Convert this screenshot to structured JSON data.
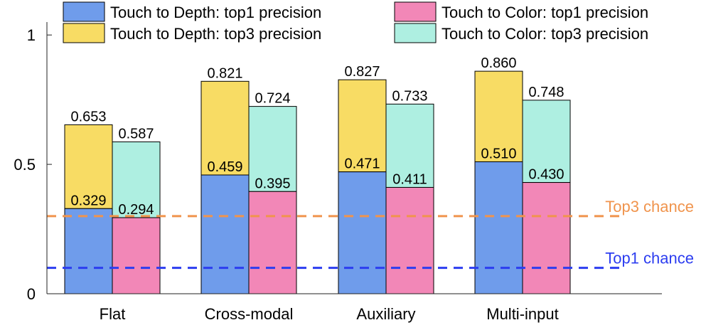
{
  "chart_data": {
    "type": "bar",
    "title": "",
    "xlabel": "",
    "ylabel": "",
    "ylim": [
      0,
      1.05
    ],
    "yticks": [
      0,
      0.5,
      1
    ],
    "ytick_labels": [
      "0",
      "0.5",
      "1"
    ],
    "categories": [
      "Flat",
      "Cross-modal",
      "Auxiliary",
      "Multi-input"
    ],
    "series": [
      {
        "name": "Touch to Depth: top1 precision",
        "values": [
          0.329,
          0.459,
          0.471,
          0.51
        ],
        "labels": [
          "0.329",
          "0.459",
          "0.471",
          "0.510"
        ],
        "color": "#6f9ceb"
      },
      {
        "name": "Touch to Depth: top3 precision",
        "values": [
          0.653,
          0.821,
          0.827,
          0.86
        ],
        "labels": [
          "0.653",
          "0.821",
          "0.827",
          "0.860"
        ],
        "color": "#f8dc64"
      },
      {
        "name": "Touch to Color: top1 precision",
        "values": [
          0.294,
          0.395,
          0.411,
          0.43
        ],
        "labels": [
          "0.294",
          "0.395",
          "0.411",
          "0.430"
        ],
        "color": "#f287b7"
      },
      {
        "name": "Touch to Color: top3 precision",
        "values": [
          0.587,
          0.724,
          0.733,
          0.748
        ],
        "labels": [
          "0.587",
          "0.724",
          "0.733",
          "0.748"
        ],
        "color": "#aeefe1"
      }
    ],
    "reference_lines": [
      {
        "name": "Top3 chance",
        "value": 0.3,
        "color": "#f0944d"
      },
      {
        "name": "Top1 chance",
        "value": 0.1,
        "color": "#2c3df0"
      }
    ],
    "legend": "top",
    "grid": false
  }
}
